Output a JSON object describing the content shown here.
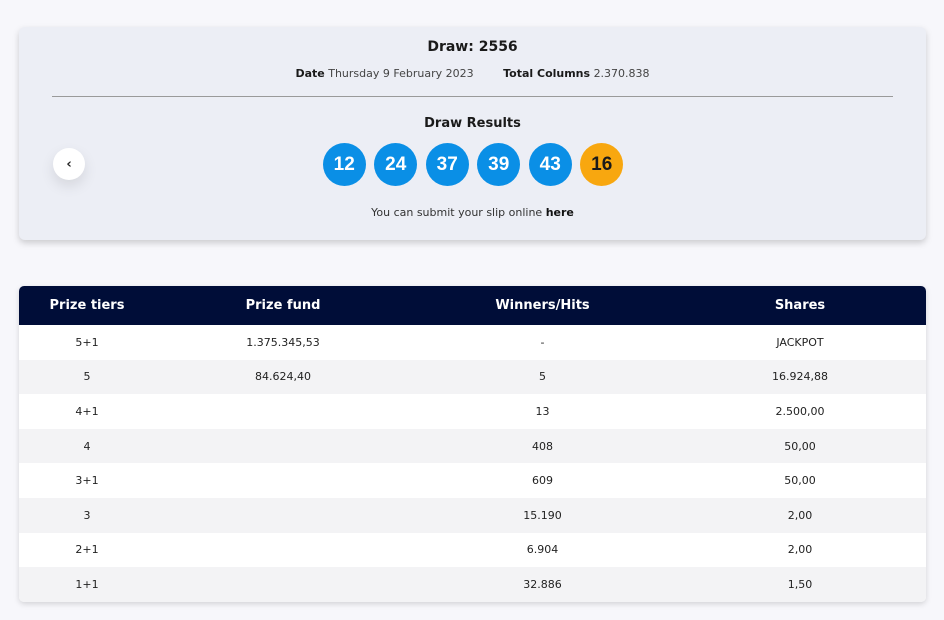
{
  "draw": {
    "title": "Draw: 2556",
    "date_label": "Date",
    "date_value": "Thursday 9 February 2023",
    "columns_label": "Total Columns",
    "columns_value": "2.370.838",
    "results_title": "Draw Results",
    "numbers": [
      "12",
      "24",
      "37",
      "39",
      "43"
    ],
    "bonus": "16",
    "submit_text": "You can submit your slip online ",
    "submit_link": "here",
    "prev_icon": "‹"
  },
  "colors": {
    "main_ball": "#0a8fe6",
    "bonus_ball": "#f8a70f",
    "table_header": "#000d38"
  },
  "table": {
    "headers": [
      "Prize tiers",
      "Prize fund",
      "Winners/Hits",
      "Shares"
    ],
    "rows": [
      [
        "5+1",
        "1.375.345,53",
        "-",
        "JACKPOT"
      ],
      [
        "5",
        "84.624,40",
        "5",
        "16.924,88"
      ],
      [
        "4+1",
        "",
        "13",
        "2.500,00"
      ],
      [
        "4",
        "",
        "408",
        "50,00"
      ],
      [
        "3+1",
        "",
        "609",
        "50,00"
      ],
      [
        "3",
        "",
        "15.190",
        "2,00"
      ],
      [
        "2+1",
        "",
        "6.904",
        "2,00"
      ],
      [
        "1+1",
        "",
        "32.886",
        "1,50"
      ]
    ]
  }
}
